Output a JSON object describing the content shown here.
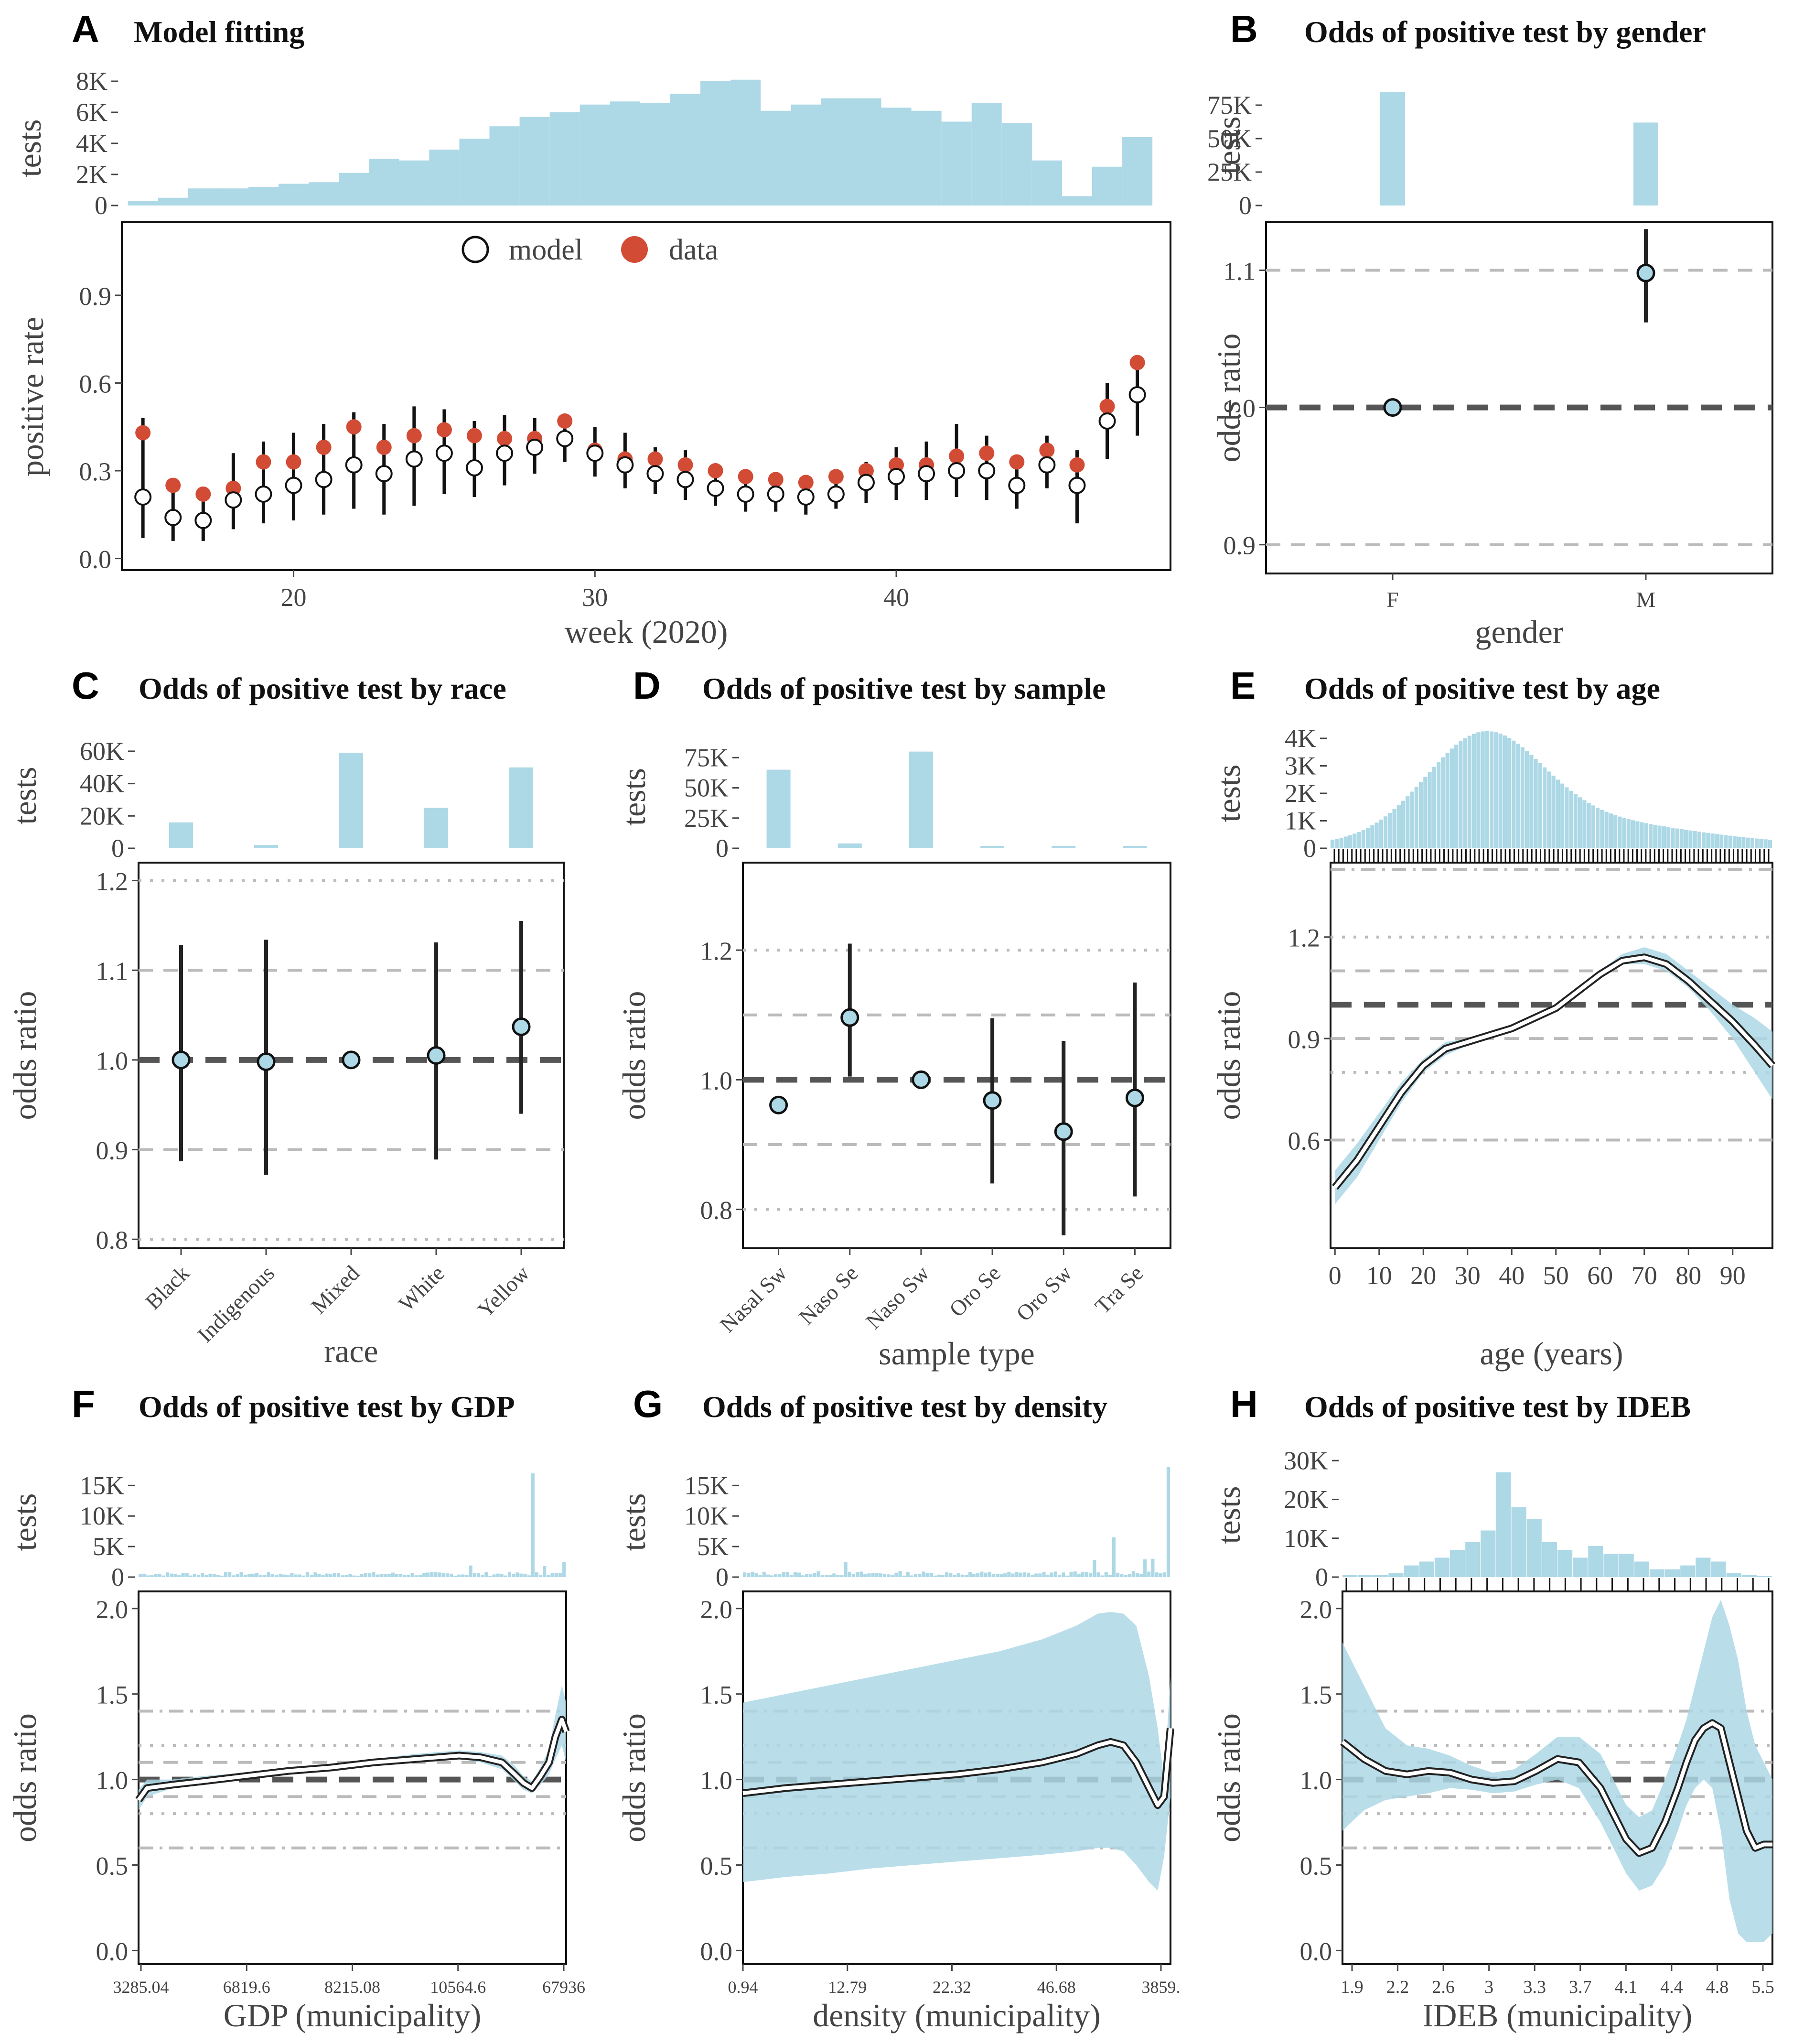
{
  "colors": {
    "bar": "#add8e6",
    "data_point": "#d24b35",
    "ci_band": "#add8e6",
    "point_fill": "#add8e6",
    "ref_line": "#555555",
    "grid": "#bbbbbb"
  },
  "chart_data": [
    {
      "panel": "A",
      "title": "Model fitting",
      "type": "scatter",
      "xlabel": "week (2020)",
      "ylabel": "positive rate",
      "hist_ylabel": "tests",
      "x_ticks": [
        "20",
        "30",
        "40"
      ],
      "y_ticks": [
        "0.0",
        "0.3",
        "0.6",
        "0.9"
      ],
      "hist_ticks": [
        "0",
        "2K",
        "4K",
        "6K",
        "8K"
      ],
      "xlim": [
        14.3,
        49.1
      ],
      "ylim": [
        -0.04,
        1.15
      ],
      "hist_max": 8000,
      "legend": {
        "model": "model",
        "data": "data"
      },
      "weeks": [
        15,
        16,
        17,
        18,
        19,
        20,
        21,
        22,
        23,
        24,
        25,
        26,
        27,
        28,
        29,
        30,
        31,
        32,
        33,
        34,
        35,
        36,
        37,
        38,
        39,
        40,
        41,
        42,
        43,
        44,
        45,
        46,
        47,
        48
      ],
      "hist": [
        300,
        500,
        1100,
        1100,
        1200,
        1400,
        1500,
        2100,
        3000,
        2900,
        3600,
        4300,
        5100,
        5700,
        6000,
        6500,
        6700,
        6600,
        7200,
        8000,
        8100,
        6100,
        6500,
        6900,
        6900,
        6300,
        6100,
        5400,
        6600,
        5300,
        2900,
        600,
        2500,
        4400
      ],
      "data": [
        0.43,
        0.25,
        0.22,
        0.24,
        0.33,
        0.33,
        0.38,
        0.45,
        0.38,
        0.42,
        0.44,
        0.42,
        0.41,
        0.41,
        0.47,
        0.37,
        0.34,
        0.34,
        0.32,
        0.3,
        0.28,
        0.27,
        0.26,
        0.28,
        0.3,
        0.32,
        0.32,
        0.35,
        0.36,
        0.33,
        0.37,
        0.32,
        0.52,
        0.67
      ],
      "model": [
        0.21,
        0.14,
        0.13,
        0.2,
        0.22,
        0.25,
        0.27,
        0.32,
        0.29,
        0.34,
        0.36,
        0.31,
        0.36,
        0.38,
        0.41,
        0.36,
        0.32,
        0.29,
        0.27,
        0.24,
        0.22,
        0.22,
        0.21,
        0.22,
        0.26,
        0.28,
        0.29,
        0.3,
        0.3,
        0.25,
        0.32,
        0.25,
        0.47,
        0.56
      ],
      "lo": [
        0.07,
        0.06,
        0.06,
        0.1,
        0.12,
        0.13,
        0.15,
        0.17,
        0.15,
        0.18,
        0.22,
        0.21,
        0.25,
        0.29,
        0.33,
        0.28,
        0.24,
        0.22,
        0.2,
        0.18,
        0.16,
        0.16,
        0.15,
        0.17,
        0.19,
        0.2,
        0.2,
        0.21,
        0.2,
        0.17,
        0.24,
        0.12,
        0.34,
        0.42
      ],
      "hi": [
        0.48,
        0.24,
        0.22,
        0.36,
        0.4,
        0.43,
        0.46,
        0.5,
        0.46,
        0.52,
        0.51,
        0.47,
        0.49,
        0.48,
        0.49,
        0.45,
        0.43,
        0.38,
        0.37,
        0.32,
        0.3,
        0.29,
        0.28,
        0.29,
        0.33,
        0.38,
        0.4,
        0.46,
        0.42,
        0.34,
        0.42,
        0.37,
        0.6,
        0.68
      ]
    },
    {
      "panel": "B",
      "title": "Odds of positive test by gender",
      "type": "scatter",
      "xlabel": "gender",
      "ylabel": "odds ratio",
      "hist_ylabel": "tests",
      "categories": [
        "F",
        "M"
      ],
      "hist": [
        85000,
        62000
      ],
      "hist_max": 90000,
      "hist_ticks": [
        "0",
        "25K",
        "50K",
        "75K"
      ],
      "y_ticks": [
        "0.9",
        "1.0",
        "1.1"
      ],
      "ylim": [
        0.879,
        1.135
      ],
      "or": [
        1.0,
        1.098
      ],
      "lo": [
        1.0,
        1.062
      ],
      "hi": [
        1.0,
        1.13
      ]
    },
    {
      "panel": "C",
      "title": "Odds of positive test by race",
      "type": "scatter",
      "xlabel": "race",
      "ylabel": "odds ratio",
      "hist_ylabel": "tests",
      "categories": [
        "Black",
        "Indigenous",
        "Mixed",
        "White",
        "Yellow"
      ],
      "hist": [
        16000,
        2000,
        59000,
        25000,
        50000
      ],
      "hist_max": 65000,
      "hist_ticks": [
        "0",
        "20K",
        "40K",
        "60K"
      ],
      "y_ticks": [
        "0.8",
        "0.9",
        "1.0",
        "1.1",
        "1.2"
      ],
      "ylim": [
        0.79,
        1.22
      ],
      "or": [
        1.0,
        0.998,
        1.0,
        1.005,
        1.037
      ],
      "lo": [
        0.887,
        0.872,
        1.0,
        0.889,
        0.94
      ],
      "hi": [
        1.128,
        1.134,
        1.0,
        1.131,
        1.155
      ]
    },
    {
      "panel": "D",
      "title": "Odds of positive test by sample",
      "type": "scatter",
      "xlabel": "sample type",
      "ylabel": "odds ratio",
      "hist_ylabel": "tests",
      "categories": [
        "Nasal Sw",
        "Naso Se",
        "Naso Sw",
        "Oro Se",
        "Oro Sw",
        "Tra Se"
      ],
      "hist": [
        65000,
        4000,
        80000,
        2000,
        2000,
        2000
      ],
      "hist_max": 85000,
      "hist_ticks": [
        "0",
        "25K",
        "50K",
        "75K"
      ],
      "y_ticks": [
        "0.8",
        "1.0",
        "1.2"
      ],
      "ylim": [
        0.74,
        1.335
      ],
      "or": [
        0.961,
        1.096,
        1.0,
        0.968,
        0.92,
        0.972
      ],
      "lo": [
        0.948,
        1.005,
        1.0,
        0.84,
        0.76,
        0.82
      ],
      "hi": [
        0.972,
        1.21,
        1.0,
        1.095,
        1.06,
        1.15
      ]
    },
    {
      "panel": "E",
      "title": "Odds of positive test by age",
      "type": "line",
      "xlabel": "age (years)",
      "ylabel": "odds ratio",
      "hist_ylabel": "tests",
      "x_ticks": [
        "0",
        "10",
        "20",
        "30",
        "40",
        "50",
        "60",
        "70",
        "80",
        "90"
      ],
      "xlim": [
        -1,
        99
      ],
      "ylim": [
        0.28,
        1.42
      ],
      "y_ticks": [
        "0.6",
        "0.9",
        "1.2"
      ],
      "hist_ticks": [
        "0",
        "1K",
        "2K",
        "3K",
        "4K"
      ],
      "hist_max": 4000,
      "x": [
        0,
        5,
        10,
        15,
        20,
        25,
        30,
        35,
        40,
        45,
        50,
        55,
        60,
        65,
        70,
        75,
        80,
        85,
        90,
        95,
        99
      ],
      "y": [
        0.46,
        0.54,
        0.64,
        0.74,
        0.82,
        0.87,
        0.89,
        0.91,
        0.93,
        0.96,
        0.99,
        1.04,
        1.09,
        1.13,
        1.14,
        1.12,
        1.07,
        1.01,
        0.95,
        0.88,
        0.82
      ],
      "lo": [
        0.41,
        0.49,
        0.6,
        0.71,
        0.8,
        0.85,
        0.88,
        0.9,
        0.92,
        0.95,
        0.98,
        1.03,
        1.08,
        1.12,
        1.12,
        1.1,
        1.05,
        0.98,
        0.9,
        0.8,
        0.72
      ],
      "hi": [
        0.51,
        0.59,
        0.68,
        0.77,
        0.84,
        0.89,
        0.9,
        0.92,
        0.94,
        0.97,
        1.0,
        1.05,
        1.1,
        1.15,
        1.17,
        1.15,
        1.1,
        1.05,
        1.0,
        0.96,
        0.92
      ]
    },
    {
      "panel": "F",
      "title": "Odds of positive test by GDP",
      "type": "line",
      "xlabel": "GDP (municipality)",
      "ylabel": "odds ratio",
      "hist_ylabel": "tests",
      "x_ticks": [
        "3285.04",
        "6819.6",
        "8215.08",
        "10564.6",
        "67936"
      ],
      "y_ticks": [
        "0.0",
        "0.5",
        "1.0",
        "1.5",
        "2.0"
      ],
      "ylim": [
        -0.08,
        2.1
      ],
      "hist_ticks": [
        "0",
        "5K",
        "10K",
        "15K"
      ],
      "hist_max": 18000,
      "x": [
        0,
        0.02,
        0.08,
        0.15,
        0.25,
        0.35,
        0.45,
        0.55,
        0.65,
        0.7,
        0.75,
        0.8,
        0.85,
        0.88,
        0.9,
        0.92,
        0.94,
        0.96,
        0.975,
        0.99,
        1.0
      ],
      "y": [
        0.88,
        0.95,
        0.97,
        0.99,
        1.02,
        1.05,
        1.07,
        1.1,
        1.12,
        1.13,
        1.14,
        1.13,
        1.1,
        1.03,
        0.98,
        0.95,
        1.02,
        1.1,
        1.25,
        1.35,
        1.28
      ],
      "lo": [
        0.82,
        0.9,
        0.95,
        0.97,
        1.0,
        1.03,
        1.06,
        1.08,
        1.1,
        1.11,
        1.12,
        1.1,
        1.06,
        0.99,
        0.94,
        0.92,
        0.97,
        1.03,
        1.12,
        1.2,
        1.1
      ],
      "hi": [
        0.94,
        1.0,
        1.0,
        1.02,
        1.04,
        1.07,
        1.09,
        1.12,
        1.15,
        1.16,
        1.17,
        1.16,
        1.14,
        1.08,
        1.02,
        0.99,
        1.07,
        1.18,
        1.38,
        1.55,
        1.45
      ]
    },
    {
      "panel": "G",
      "title": "Odds of positive test by density",
      "type": "line",
      "xlabel": "density (municipality)",
      "ylabel": "odds ratio",
      "hist_ylabel": "tests",
      "x_ticks": [
        "0.94",
        "12.79",
        "22.32",
        "46.68",
        "3859."
      ],
      "y_ticks": [
        "0.0",
        "0.5",
        "1.0",
        "1.5",
        "2.0"
      ],
      "ylim": [
        -0.08,
        2.1
      ],
      "hist_ticks": [
        "0",
        "5K",
        "10K",
        "15K"
      ],
      "hist_max": 18000,
      "x": [
        0,
        0.1,
        0.2,
        0.3,
        0.4,
        0.5,
        0.6,
        0.7,
        0.78,
        0.83,
        0.86,
        0.89,
        0.92,
        0.95,
        0.97,
        0.985,
        1.0
      ],
      "y": [
        0.92,
        0.95,
        0.97,
        0.99,
        1.01,
        1.03,
        1.06,
        1.1,
        1.15,
        1.2,
        1.22,
        1.2,
        1.1,
        0.95,
        0.85,
        0.9,
        1.3
      ],
      "lo": [
        0.4,
        0.43,
        0.45,
        0.48,
        0.5,
        0.52,
        0.54,
        0.56,
        0.58,
        0.6,
        0.6,
        0.58,
        0.5,
        0.4,
        0.35,
        0.55,
        0.9
      ],
      "hi": [
        1.45,
        1.5,
        1.55,
        1.6,
        1.65,
        1.7,
        1.75,
        1.82,
        1.9,
        1.97,
        1.98,
        1.97,
        1.9,
        1.6,
        1.3,
        1.0,
        1.6
      ]
    },
    {
      "panel": "H",
      "title": "Odds of positive test by IDEB",
      "type": "line",
      "xlabel": "IDEB (municipality)",
      "ylabel": "odds ratio",
      "hist_ylabel": "tests",
      "x_ticks": [
        "1.9",
        "2.2",
        "2.6",
        "3",
        "3.3",
        "3.7",
        "4.1",
        "4.4",
        "4.8",
        "5.5"
      ],
      "y_ticks": [
        "0.0",
        "0.5",
        "1.0",
        "1.5",
        "2.0"
      ],
      "ylim": [
        -0.08,
        2.1
      ],
      "hist_ticks": [
        "0",
        "10K",
        "20K",
        "30K"
      ],
      "hist_max": 32000,
      "hist": [
        500,
        500,
        500,
        1000,
        3000,
        4000,
        5000,
        7000,
        9000,
        12000,
        27000,
        18000,
        15000,
        9000,
        7000,
        5000,
        8000,
        6000,
        6000,
        4000,
        2000,
        2000,
        3000,
        5000,
        4000,
        1000,
        500,
        300
      ],
      "x": [
        0,
        0.05,
        0.1,
        0.15,
        0.2,
        0.25,
        0.3,
        0.35,
        0.4,
        0.45,
        0.5,
        0.55,
        0.6,
        0.63,
        0.66,
        0.69,
        0.72,
        0.75,
        0.78,
        0.8,
        0.82,
        0.84,
        0.86,
        0.88,
        0.9,
        0.92,
        0.94,
        0.96,
        0.98,
        1.0
      ],
      "y": [
        1.22,
        1.12,
        1.05,
        1.03,
        1.05,
        1.04,
        1.0,
        0.98,
        0.99,
        1.05,
        1.12,
        1.1,
        0.95,
        0.8,
        0.65,
        0.57,
        0.6,
        0.75,
        0.95,
        1.1,
        1.23,
        1.3,
        1.33,
        1.3,
        1.1,
        0.9,
        0.7,
        0.6,
        0.62,
        0.62
      ],
      "lo": [
        0.7,
        0.82,
        0.88,
        0.9,
        0.92,
        0.95,
        0.94,
        0.92,
        0.93,
        0.97,
        1.0,
        0.95,
        0.75,
        0.6,
        0.45,
        0.35,
        0.38,
        0.5,
        0.7,
        0.85,
        0.95,
        1.0,
        0.95,
        0.7,
        0.3,
        0.1,
        0.05,
        0.05,
        0.05,
        0.1
      ],
      "hi": [
        1.8,
        1.55,
        1.3,
        1.2,
        1.18,
        1.14,
        1.08,
        1.04,
        1.06,
        1.15,
        1.25,
        1.25,
        1.15,
        1.0,
        0.85,
        0.78,
        0.82,
        1.0,
        1.2,
        1.35,
        1.55,
        1.75,
        1.95,
        2.05,
        1.9,
        1.7,
        1.4,
        1.2,
        1.1,
        1.0
      ]
    }
  ]
}
